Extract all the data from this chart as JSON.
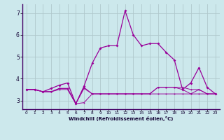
{
  "x": [
    0,
    1,
    2,
    3,
    4,
    5,
    6,
    7,
    8,
    9,
    10,
    11,
    12,
    13,
    14,
    15,
    16,
    17,
    18,
    19,
    20,
    21,
    22,
    23
  ],
  "main_line": [
    3.5,
    3.5,
    3.4,
    3.55,
    3.7,
    3.8,
    2.85,
    3.65,
    4.7,
    5.4,
    5.5,
    5.5,
    7.1,
    6.0,
    5.5,
    5.6,
    5.6,
    5.2,
    4.85,
    3.5,
    3.8,
    4.5,
    3.6,
    3.3
  ],
  "flat1": [
    3.5,
    3.5,
    3.4,
    3.4,
    3.5,
    3.5,
    2.85,
    2.9,
    3.3,
    3.3,
    3.3,
    3.3,
    3.3,
    3.3,
    3.3,
    3.3,
    3.3,
    3.3,
    3.3,
    3.3,
    3.3,
    3.5,
    3.3,
    3.3
  ],
  "flat2": [
    3.5,
    3.5,
    3.4,
    3.4,
    3.55,
    3.55,
    2.85,
    3.55,
    3.3,
    3.3,
    3.3,
    3.3,
    3.3,
    3.3,
    3.3,
    3.3,
    3.6,
    3.6,
    3.6,
    3.5,
    3.3,
    3.3,
    3.3,
    3.3
  ],
  "flat3": [
    3.5,
    3.5,
    3.4,
    3.4,
    3.55,
    3.55,
    2.85,
    3.6,
    3.3,
    3.3,
    3.3,
    3.3,
    3.3,
    3.3,
    3.3,
    3.3,
    3.6,
    3.6,
    3.6,
    3.6,
    3.5,
    3.5,
    3.3,
    3.3
  ],
  "background": "#cce8ec",
  "grid_color": "#b0c8cc",
  "line_color": "#990099",
  "ylim": [
    2.6,
    7.4
  ],
  "xlim": [
    -0.5,
    23.5
  ],
  "yticks": [
    3,
    4,
    5,
    6,
    7
  ],
  "xlabel": "Windchill (Refroidissement éolien,°C)"
}
